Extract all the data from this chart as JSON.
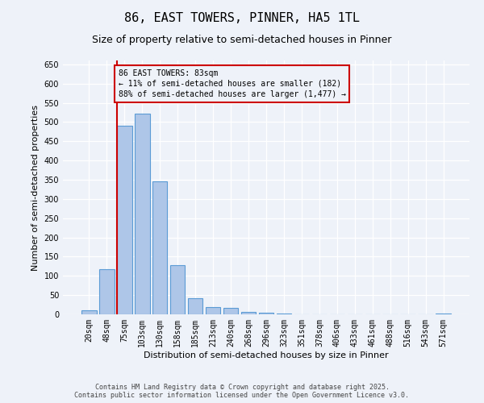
{
  "title": "86, EAST TOWERS, PINNER, HA5 1TL",
  "subtitle": "Size of property relative to semi-detached houses in Pinner",
  "xlabel": "Distribution of semi-detached houses by size in Pinner",
  "ylabel": "Number of semi-detached properties",
  "footer_line1": "Contains HM Land Registry data © Crown copyright and database right 2025.",
  "footer_line2": "Contains public sector information licensed under the Open Government Licence v3.0.",
  "annotation_line1": "86 EAST TOWERS: 83sqm",
  "annotation_line2": "← 11% of semi-detached houses are smaller (182)",
  "annotation_line3": "88% of semi-detached houses are larger (1,477) →",
  "categories": [
    "20sqm",
    "48sqm",
    "75sqm",
    "103sqm",
    "130sqm",
    "158sqm",
    "185sqm",
    "213sqm",
    "240sqm",
    "268sqm",
    "296sqm",
    "323sqm",
    "351sqm",
    "378sqm",
    "406sqm",
    "433sqm",
    "461sqm",
    "488sqm",
    "516sqm",
    "543sqm",
    "571sqm"
  ],
  "values": [
    10,
    118,
    490,
    522,
    345,
    127,
    42,
    18,
    16,
    7,
    5,
    2,
    1,
    0,
    0,
    0,
    0,
    0,
    0,
    0,
    3
  ],
  "bar_color": "#aec6e8",
  "bar_edge_color": "#5b9bd5",
  "vline_color": "#cc0000",
  "vline_x_index": 2,
  "ylim": [
    0,
    660
  ],
  "yticks": [
    0,
    50,
    100,
    150,
    200,
    250,
    300,
    350,
    400,
    450,
    500,
    550,
    600,
    650
  ],
  "bg_color": "#eef2f9",
  "title_fontsize": 11,
  "subtitle_fontsize": 9,
  "axis_tick_fontsize": 7,
  "ylabel_fontsize": 8,
  "xlabel_fontsize": 8,
  "annotation_fontsize": 7,
  "footer_fontsize": 6
}
